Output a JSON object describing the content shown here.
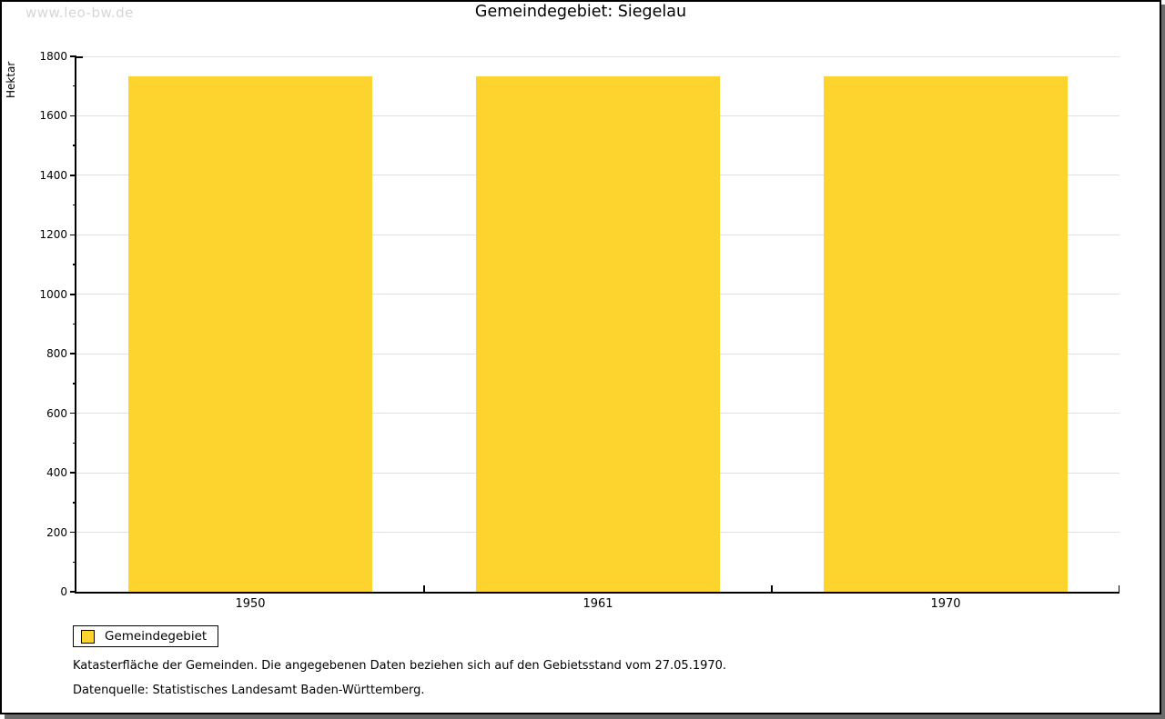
{
  "watermark": "www.leo-bw.de",
  "title": "Gemeindegebiet: Siegelau",
  "chart_data": {
    "type": "bar",
    "title": "Gemeindegebiet: Siegelau",
    "categories": [
      "1950",
      "1961",
      "1970"
    ],
    "series": [
      {
        "name": "Gemeindegebiet",
        "values": [
          1733,
          1733,
          1733
        ]
      }
    ],
    "xlabel": "",
    "ylabel": "Hektar",
    "ylim": [
      0,
      1800
    ],
    "y_major_step": 200,
    "y_minor_step": 100,
    "y_tick_labels": [
      "0",
      "200",
      "400",
      "600",
      "800",
      "1000",
      "1200",
      "1400",
      "1600",
      "1800"
    ],
    "grid": "horizontal-major",
    "legend_position": "bottom-left",
    "bar_color": "#FDD32E"
  },
  "legend": {
    "items": [
      {
        "label": "Gemeindegebiet",
        "color": "#FDD32E"
      }
    ]
  },
  "footnotes": [
    "Katasterfläche der Gemeinden. Die angegebenen Daten beziehen sich auf den Gebietsstand vom 27.05.1970.",
    "Datenquelle: Statistisches Landesamt Baden-Württemberg."
  ],
  "colors": {
    "bar": "#FDD32E",
    "gridline": "#e0e0e0",
    "frame_shadow": "#6b6b6b",
    "watermark": "#d6d6d6",
    "axis": "#000000"
  }
}
